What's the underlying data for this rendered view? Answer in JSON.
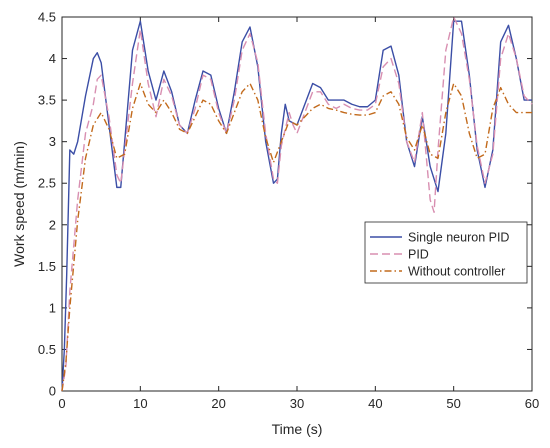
{
  "chart_data": {
    "type": "line",
    "xlabel": "Time (s)",
    "ylabel": "Work speed (m/min)",
    "xlim": [
      0,
      60
    ],
    "ylim": [
      0,
      4.5
    ],
    "xticks": [
      "0",
      "10",
      "20",
      "30",
      "40",
      "50",
      "60"
    ],
    "yticks": [
      "0",
      "0.5",
      "1",
      "1.5",
      "2",
      "2.5",
      "3",
      "3.5",
      "4",
      "4.5"
    ],
    "grid": false,
    "legend_position": "right",
    "series": [
      {
        "name": "Single neuron PID",
        "color": "#3b4ea6",
        "style": "solid",
        "x": [
          0,
          0.3,
          0.6,
          1,
          1.5,
          2,
          3,
          4,
          4.5,
          5,
          6,
          7,
          7.5,
          8,
          9,
          10,
          11,
          12,
          13,
          14,
          15,
          16,
          17,
          18,
          19,
          20,
          21,
          22,
          23,
          24,
          25,
          26,
          27,
          27.5,
          28,
          28.5,
          29,
          30,
          31,
          32,
          33,
          34,
          35,
          36,
          37,
          38,
          39,
          40,
          41,
          42,
          43,
          44,
          45,
          46,
          47,
          48,
          49,
          50,
          51,
          52,
          53,
          54,
          55,
          56,
          57,
          58,
          59,
          60
        ],
        "y": [
          0,
          0.5,
          1.4,
          2.9,
          2.85,
          3.0,
          3.55,
          4.0,
          4.07,
          3.95,
          3.2,
          2.45,
          2.45,
          3.0,
          4.1,
          4.45,
          3.85,
          3.5,
          3.85,
          3.6,
          3.2,
          3.1,
          3.5,
          3.85,
          3.8,
          3.4,
          3.1,
          3.6,
          4.2,
          4.38,
          3.9,
          3.0,
          2.5,
          2.55,
          3.1,
          3.45,
          3.25,
          3.2,
          3.45,
          3.7,
          3.65,
          3.5,
          3.5,
          3.5,
          3.45,
          3.42,
          3.42,
          3.5,
          4.1,
          4.15,
          3.8,
          3.0,
          2.7,
          3.3,
          2.7,
          2.4,
          3.1,
          4.45,
          4.45,
          3.8,
          2.9,
          2.45,
          2.9,
          4.2,
          4.4,
          4.0,
          3.5,
          3.5
        ]
      },
      {
        "name": "PID",
        "color": "#d88fb1",
        "style": "dashed",
        "x": [
          0,
          0.5,
          1,
          2,
          3,
          4,
          4.5,
          5,
          6,
          7,
          7.5,
          8,
          9,
          10,
          11,
          12,
          13,
          14,
          15,
          16,
          17,
          18,
          19,
          20,
          21,
          22,
          23,
          24,
          25,
          26,
          27,
          27.5,
          28,
          29,
          29.5,
          30,
          31,
          32,
          33,
          34,
          35,
          36,
          37,
          38,
          39,
          40,
          41,
          42,
          43,
          44,
          45,
          46,
          47,
          47.5,
          48,
          49,
          50,
          51,
          52,
          53,
          54,
          55,
          56,
          57,
          58,
          59,
          60
        ],
        "y": [
          0,
          0.3,
          1.2,
          2.3,
          3.1,
          3.45,
          3.75,
          3.8,
          3.3,
          2.6,
          2.5,
          2.9,
          3.7,
          4.35,
          3.7,
          3.3,
          3.75,
          3.55,
          3.2,
          3.1,
          3.4,
          3.8,
          3.75,
          3.35,
          3.1,
          3.5,
          4.1,
          4.3,
          3.95,
          3.1,
          2.55,
          2.5,
          2.95,
          3.35,
          3.2,
          3.1,
          3.35,
          3.6,
          3.6,
          3.45,
          3.4,
          3.45,
          3.4,
          3.38,
          3.38,
          3.45,
          3.9,
          4.0,
          3.7,
          3.0,
          2.75,
          3.35,
          2.3,
          2.15,
          2.9,
          4.1,
          4.5,
          4.3,
          3.75,
          2.95,
          2.5,
          2.85,
          4.0,
          4.3,
          4.0,
          3.55,
          3.45
        ]
      },
      {
        "name": "Without controller",
        "color": "#c26a1c",
        "style": "dashdot",
        "x": [
          0,
          0.5,
          1,
          2,
          3,
          4,
          5,
          6,
          7,
          8,
          9,
          10,
          11,
          12,
          13,
          14,
          15,
          16,
          17,
          18,
          19,
          20,
          21,
          22,
          23,
          24,
          25,
          26,
          27,
          28,
          29,
          30,
          31,
          32,
          33,
          34,
          35,
          36,
          37,
          38,
          39,
          40,
          41,
          42,
          43,
          44,
          45,
          46,
          47,
          48,
          49,
          50,
          51,
          52,
          53,
          54,
          55,
          56,
          57,
          58,
          59,
          60
        ],
        "y": [
          0,
          0.35,
          1.0,
          2.05,
          2.8,
          3.2,
          3.35,
          3.15,
          2.8,
          2.85,
          3.4,
          3.7,
          3.45,
          3.35,
          3.5,
          3.35,
          3.15,
          3.1,
          3.3,
          3.5,
          3.45,
          3.25,
          3.1,
          3.35,
          3.6,
          3.7,
          3.5,
          3.05,
          2.75,
          3.0,
          3.25,
          3.2,
          3.3,
          3.4,
          3.45,
          3.4,
          3.38,
          3.35,
          3.33,
          3.32,
          3.32,
          3.35,
          3.55,
          3.6,
          3.45,
          3.05,
          2.9,
          3.2,
          2.85,
          2.8,
          3.35,
          3.7,
          3.55,
          3.1,
          2.8,
          2.85,
          3.4,
          3.65,
          3.45,
          3.35,
          3.35,
          3.35
        ]
      }
    ]
  }
}
